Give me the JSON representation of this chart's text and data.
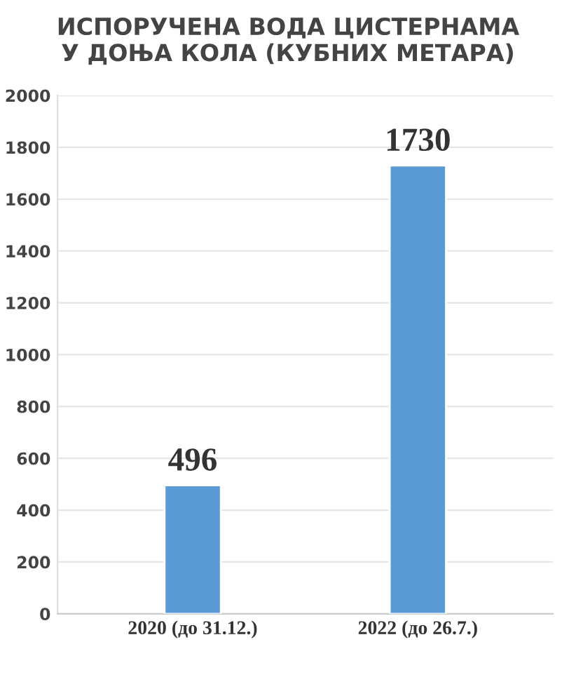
{
  "chart_data": {
    "type": "bar",
    "title": "ИСПОРУЧЕНА ВОДА ЦИСТЕРНАМА\nУ ДОЊА КОЛА (КУБНИХ МЕТАРА)",
    "categories": [
      "2020 (до 31.12.)",
      "2022 (до 26.7.)"
    ],
    "values": [
      496,
      1730
    ],
    "color": "#5b9bd5",
    "ylim": [
      0,
      2000
    ],
    "yticks": [
      0,
      200,
      400,
      600,
      800,
      1000,
      1200,
      1400,
      1600,
      1800,
      2000
    ],
    "grid": "y",
    "data_labels": true
  }
}
